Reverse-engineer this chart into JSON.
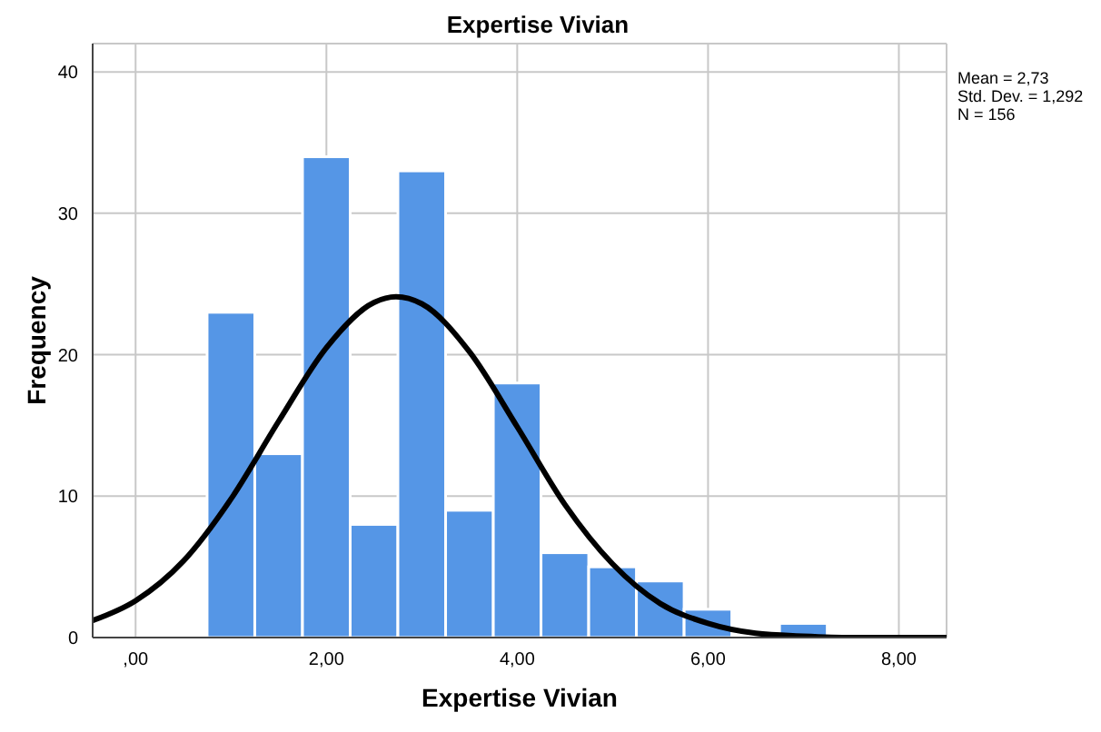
{
  "chart_data": {
    "type": "histogram",
    "title": "Expertise Vivian",
    "xlabel": "Expertise Vivian",
    "ylabel": "Frequency",
    "bins": [
      0.75,
      1.25,
      1.75,
      2.25,
      2.75,
      3.25,
      3.75,
      4.25,
      4.75,
      5.25,
      5.75,
      6.25,
      6.75,
      7.25
    ],
    "values": [
      23,
      13,
      34,
      8,
      33,
      9,
      18,
      6,
      5,
      4,
      2,
      0,
      1
    ],
    "color": "#5596e6",
    "series": [
      {
        "type": "line",
        "color": "#000000",
        "x": [
          -0.45,
          0,
          0.5,
          1,
          1.5,
          2,
          2.5,
          2.73,
          3,
          3.5,
          4,
          4.5,
          5,
          5.5,
          6,
          6.5,
          7,
          7.5,
          8,
          8.5
        ],
        "values": [
          1.2,
          2.6,
          5.4,
          9.8,
          15.3,
          20.5,
          23.7,
          24.1,
          23.6,
          20.2,
          14.9,
          9.4,
          5.2,
          2.4,
          1.0,
          0.3,
          0.1,
          0,
          0,
          0
        ]
      }
    ],
    "xlim": [
      -0.45,
      8.5
    ],
    "xticks": [
      {
        "value": 0,
        "label": ",00"
      },
      {
        "value": 2,
        "label": "2,00"
      },
      {
        "value": 4,
        "label": "4,00"
      },
      {
        "value": 6,
        "label": "6,00"
      },
      {
        "value": 8,
        "label": "8,00"
      }
    ],
    "ylim": [
      0,
      42
    ],
    "yticks": [
      0,
      10,
      20,
      30,
      40
    ],
    "grid": true,
    "marker": "none",
    "line_style": "solid",
    "annotations": [
      "Mean = 2,73",
      "Std. Dev. = 1,292",
      "N = 156"
    ]
  }
}
